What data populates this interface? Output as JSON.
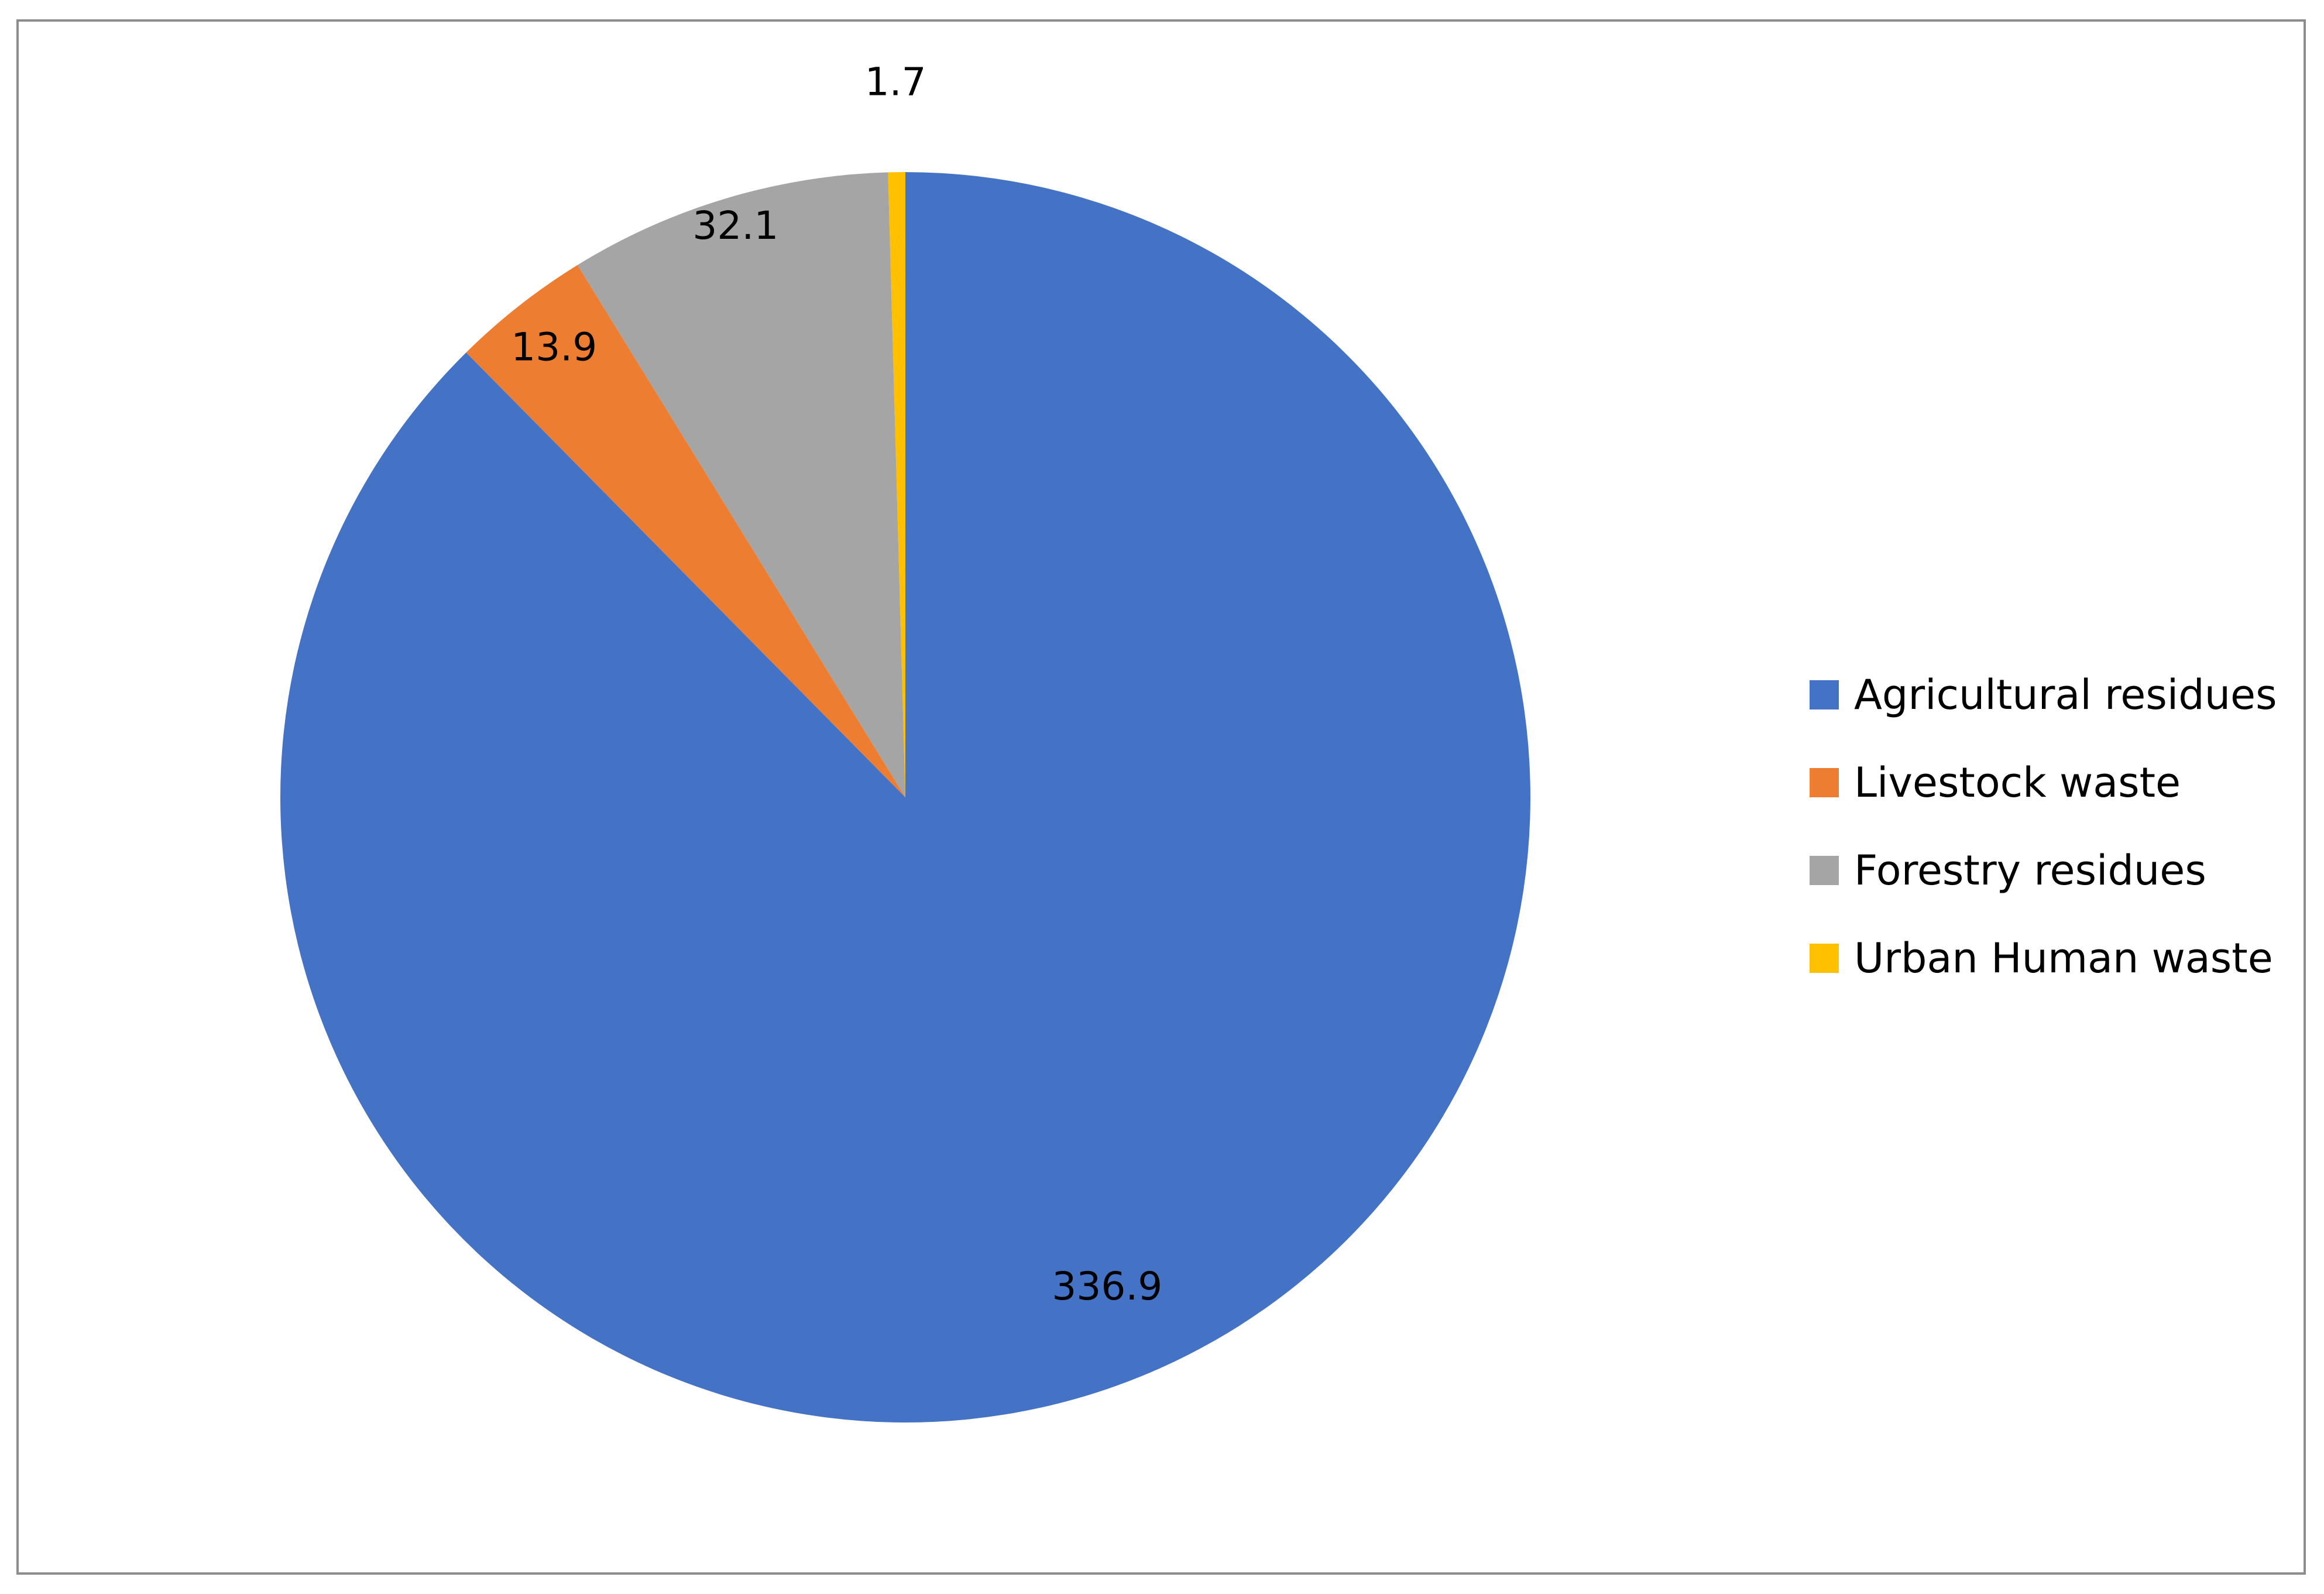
{
  "chart_data": {
    "type": "pie",
    "title": "",
    "start": "top, clockwise",
    "series": [
      {
        "name": "Agricultural residues",
        "value": 336.9,
        "color": "#4472c4",
        "label": "336.9"
      },
      {
        "name": "Livestock waste",
        "value": 13.9,
        "color": "#ed7d31",
        "label": "13.9"
      },
      {
        "name": "Forestry residues",
        "value": 32.1,
        "color": "#a5a5a5",
        "label": "32.1"
      },
      {
        "name": "Urban Human waste",
        "value": 1.7,
        "color": "#ffc000",
        "label": "1.7"
      }
    ],
    "legend_position": "right"
  }
}
